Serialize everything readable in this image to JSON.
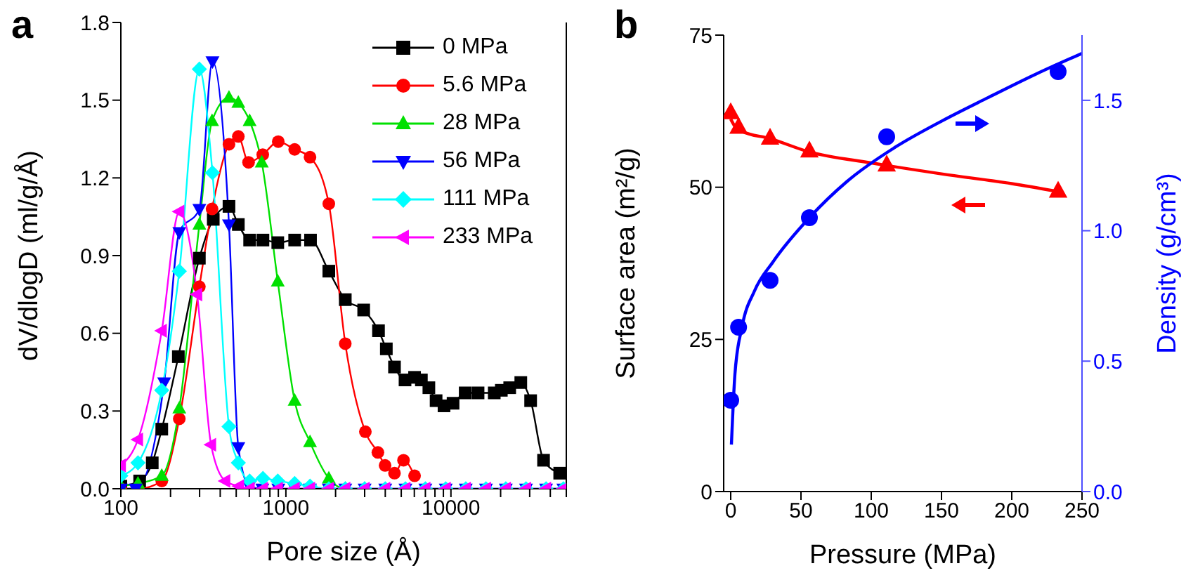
{
  "chart_data": [
    {
      "type": "line",
      "title": "a",
      "xlabel": "Pore size (Å)",
      "ylabel": "dV/dlogD (ml/g/Å)",
      "log": "x",
      "xlim": [
        100,
        50000
      ],
      "xticks": [
        100,
        {
          "value": 200,
          "label": null
        },
        {
          "value": 300,
          "label": null
        },
        {
          "value": 400,
          "label": null
        },
        {
          "value": 500,
          "label": null
        },
        {
          "value": 600,
          "label": null
        },
        {
          "value": 700,
          "label": null
        },
        {
          "value": 800,
          "label": null
        },
        {
          "value": 900,
          "label": null
        },
        1000,
        {
          "value": 2000,
          "label": null
        },
        {
          "value": 3000,
          "label": null
        },
        {
          "value": 4000,
          "label": null
        },
        {
          "value": 5000,
          "label": null
        },
        {
          "value": 6000,
          "label": null
        },
        {
          "value": 7000,
          "label": null
        },
        {
          "value": 8000,
          "label": null
        },
        {
          "value": 9000,
          "label": null
        },
        10000,
        {
          "value": 20000,
          "label": null
        },
        {
          "value": 30000,
          "label": null
        },
        {
          "value": 40000,
          "label": null
        },
        {
          "value": 50000,
          "label": null
        }
      ],
      "ylim": [
        0,
        1.8
      ],
      "yticks": [
        {
          "value": 0,
          "label": "0.0"
        },
        0.3,
        0.6,
        0.9,
        1.2,
        1.5,
        1.8
      ],
      "legend": "top right",
      "line_style": "solid",
      "series": [
        {
          "name": "0 MPa",
          "color": "#000000",
          "marker": "square",
          "x": [
            100,
            130,
            155,
            177,
            223,
            299,
            363,
            452,
            515,
            603,
            726,
            893,
            1130,
            1410,
            1820,
            2290,
            2960,
            3640,
            4060,
            4550,
            5270,
            6020,
            6620,
            7350,
            8130,
            9080,
            10300,
            12200,
            14600,
            18300,
            20200,
            22700,
            26500,
            30400,
            36400,
            45600
          ],
          "values": [
            0.01,
            0.03,
            0.1,
            0.23,
            0.51,
            0.89,
            1.04,
            1.09,
            1.02,
            0.96,
            0.96,
            0.95,
            0.96,
            0.96,
            0.84,
            0.73,
            0.69,
            0.61,
            0.54,
            0.47,
            0.42,
            0.43,
            0.42,
            0.39,
            0.34,
            0.32,
            0.33,
            0.37,
            0.37,
            0.37,
            0.38,
            0.39,
            0.41,
            0.34,
            0.11,
            0.06
          ]
        },
        {
          "name": "5.6 MPa",
          "color": "#ff0000",
          "marker": "circle",
          "x": [
            100,
            127,
            177,
            226,
            299,
            357,
            452,
            515,
            594,
            724,
            899,
            1130,
            1400,
            1820,
            2290,
            3030,
            3610,
            3990,
            4550,
            5160,
            6020
          ],
          "values": [
            0,
            0,
            0.03,
            0.27,
            0.78,
            1.08,
            1.33,
            1.36,
            1.26,
            1.29,
            1.34,
            1.31,
            1.28,
            1.1,
            0.56,
            0.22,
            0.14,
            0.09,
            0.06,
            0.11,
            0.05
          ]
        },
        {
          "name": "28 MPa",
          "color": "#00e000",
          "marker": "triangle",
          "x": [
            100,
            127,
            177,
            226,
            299,
            357,
            452,
            515,
            603,
            714,
            893,
            1130,
            1400,
            1820,
            2290,
            3000
          ],
          "values": [
            0.01,
            0.02,
            0.05,
            0.31,
            1.02,
            1.42,
            1.51,
            1.49,
            1.42,
            1.26,
            0.8,
            0.34,
            0.18,
            0.04,
            0,
            0
          ]
        },
        {
          "name": "56 MPa",
          "color": "#0000ff",
          "marker": "triangle-down",
          "x": [
            100,
            123,
            183,
            226,
            299,
            359,
            452,
            515,
            600,
            720,
            900,
            1130,
            1400,
            1820,
            2290,
            3000,
            4000,
            5300,
            7000,
            9300,
            12300,
            16300,
            21500,
            28500,
            37700,
            48000
          ],
          "values": [
            0,
            0,
            0.41,
            0.99,
            1.08,
            1.65,
            1.02,
            0.16,
            0.01,
            0,
            0,
            0,
            0,
            0,
            0,
            0,
            0,
            0,
            0,
            0,
            0,
            0,
            0,
            0,
            0,
            0
          ]
        },
        {
          "name": "111 MPa",
          "color": "#00ffff",
          "marker": "diamond",
          "x": [
            100,
            127,
            177,
            226,
            299,
            359,
            452,
            515,
            603,
            726,
            893,
            1130,
            1400,
            1820,
            2290,
            3000,
            4000,
            5300,
            7000,
            9300,
            12300,
            16300,
            21500,
            28500,
            37700,
            48000
          ],
          "values": [
            0.05,
            0.1,
            0.38,
            0.84,
            1.62,
            1.22,
            0.24,
            0.1,
            0.03,
            0.04,
            0.03,
            0.02,
            0.01,
            0,
            0,
            0,
            0,
            0,
            0,
            0,
            0,
            0,
            0,
            0,
            0,
            0
          ]
        },
        {
          "name": "233 MPa",
          "color": "#ff00ff",
          "marker": "triangle-left",
          "x": [
            100,
            127,
            177,
            226,
            290,
            352,
            429,
            520,
            603,
            726,
            893,
            1130,
            1400,
            1820,
            2290,
            3000,
            4000,
            5300,
            7000,
            9300,
            12300,
            16300,
            21500,
            28500,
            37700,
            48000
          ],
          "values": [
            0.09,
            0.19,
            0.61,
            1.07,
            0.75,
            0.17,
            0.03,
            0.01,
            0,
            0,
            0,
            0,
            0,
            0,
            0,
            0,
            0,
            0,
            0,
            0,
            0,
            0,
            0,
            0,
            0,
            0
          ]
        }
      ]
    },
    {
      "type": "scatter",
      "title": "b",
      "xlabel": "Pressure (MPa)",
      "ylabel": "Surface area (m²/g)",
      "y2label": "Density (g/cm³)",
      "xlim": [
        -5,
        250
      ],
      "xticks": [
        0,
        50,
        100,
        150,
        200,
        250
      ],
      "ylim": [
        0,
        75
      ],
      "yticks": [
        0,
        25,
        50,
        75
      ],
      "y2lim": [
        0,
        1.75
      ],
      "y2ticks": [
        {
          "value": 0,
          "label": "0.0"
        },
        0.5,
        {
          "value": 1,
          "label": "1.0"
        },
        1.5
      ],
      "line_style": "solid",
      "series": [
        {
          "color": "#ff0000",
          "marker": "triangle",
          "x": [
            0,
            5.6,
            28,
            56,
            111,
            233
          ],
          "values": [
            62.3,
            59.9,
            58.1,
            56.0,
            53.7,
            49.4
          ]
        },
        {
          "type": "line",
          "color": "#ff0000",
          "marker": "none",
          "x": [
            0,
            3,
            8,
            28,
            56,
            100,
            150,
            200,
            233
          ],
          "values": [
            61.2,
            60.0,
            59.2,
            58.0,
            55.8,
            54.0,
            52.2,
            50.6,
            49.3
          ]
        },
        {
          "axis": "y2",
          "color": "#0000ff",
          "marker": "circle",
          "x": [
            0,
            5.6,
            28,
            56,
            111,
            233
          ],
          "values": [
            0.35,
            0.63,
            0.81,
            1.05,
            1.36,
            1.61
          ]
        },
        {
          "type": "line",
          "axis": "y2",
          "color": "#0000ff",
          "marker": "none",
          "x": [
            0.5,
            3,
            8,
            17,
            30,
            56,
            83,
            117,
            150,
            183,
            217,
            250
          ],
          "values": [
            0.18,
            0.45,
            0.63,
            0.77,
            0.88,
            1.05,
            1.19,
            1.32,
            1.42,
            1.51,
            1.6,
            1.68
          ]
        }
      ]
    }
  ]
}
